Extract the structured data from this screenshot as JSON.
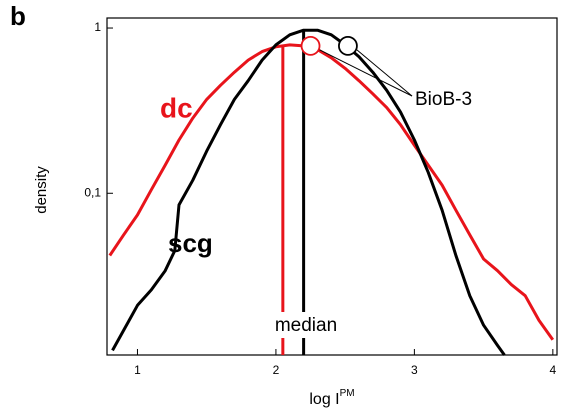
{
  "chart_data": {
    "type": "line",
    "panel_label": "b",
    "ylabel": "density",
    "xlabel": "log I",
    "xlabel_sup": "PM",
    "log_y": true,
    "xlim": [
      0.78,
      4.03
    ],
    "xticks": [
      1,
      2,
      3,
      4
    ],
    "ylim": [
      0.0105,
      1.15
    ],
    "yticks": [
      1,
      {
        "value": 0.1,
        "label": "0,1"
      }
    ],
    "series": [
      {
        "name": "dc",
        "color": "#e8141b",
        "x": [
          0.8,
          0.9,
          1.0,
          1.1,
          1.2,
          1.3,
          1.4,
          1.5,
          1.6,
          1.7,
          1.8,
          1.9,
          2.0,
          2.1,
          2.2,
          2.3,
          2.4,
          2.5,
          2.6,
          2.7,
          2.8,
          2.9,
          3.0,
          3.1,
          3.2,
          3.3,
          3.4,
          3.5,
          3.6,
          3.7,
          3.8,
          3.9,
          4.0
        ],
        "values": [
          0.042,
          0.056,
          0.074,
          0.105,
          0.148,
          0.21,
          0.285,
          0.37,
          0.45,
          0.54,
          0.64,
          0.72,
          0.77,
          0.79,
          0.78,
          0.74,
          0.66,
          0.57,
          0.48,
          0.4,
          0.33,
          0.26,
          0.195,
          0.148,
          0.112,
          0.079,
          0.056,
          0.04,
          0.034,
          0.028,
          0.024,
          0.017,
          0.013
        ]
      },
      {
        "name": "scg",
        "color": "#000000",
        "x": [
          0.82,
          0.9,
          1.0,
          1.1,
          1.2,
          1.27,
          1.3,
          1.4,
          1.5,
          1.6,
          1.7,
          1.8,
          1.9,
          2.0,
          2.1,
          2.2,
          2.3,
          2.4,
          2.5,
          2.6,
          2.7,
          2.8,
          2.9,
          3.0,
          3.1,
          3.2,
          3.3,
          3.4,
          3.5,
          3.6,
          3.65
        ],
        "values": [
          0.0112,
          0.0148,
          0.021,
          0.026,
          0.034,
          0.045,
          0.085,
          0.12,
          0.18,
          0.26,
          0.37,
          0.48,
          0.64,
          0.79,
          0.91,
          0.97,
          0.97,
          0.91,
          0.79,
          0.67,
          0.54,
          0.42,
          0.31,
          0.21,
          0.134,
          0.079,
          0.042,
          0.024,
          0.0159,
          0.012,
          0.0105
        ]
      }
    ],
    "median_lines": [
      {
        "x": 2.05,
        "top": 0.79,
        "color": "#e8141b"
      },
      {
        "x": 2.2,
        "top": 0.97,
        "color": "#000000"
      }
    ],
    "median_label": "median",
    "markers": [
      {
        "x": 2.25,
        "y": 0.78,
        "color": "#e8141b"
      },
      {
        "x": 2.52,
        "y": 0.78,
        "color": "#000000"
      }
    ],
    "marker_label": "BioB-3"
  }
}
